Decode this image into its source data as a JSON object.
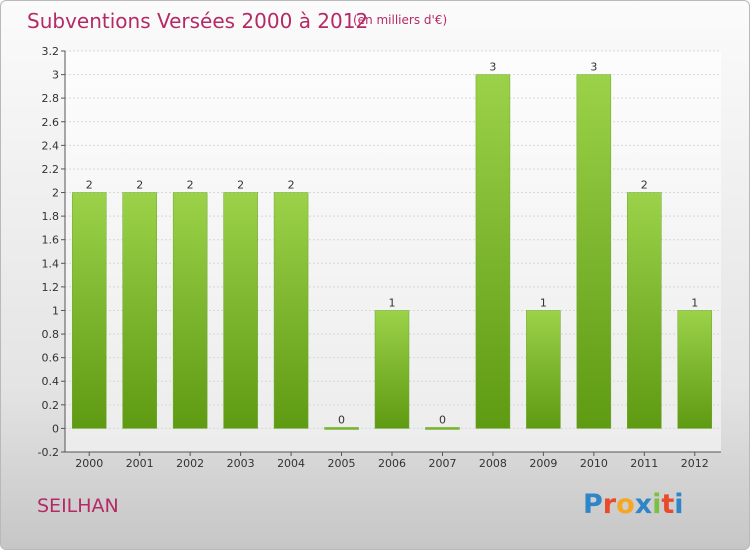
{
  "title": "Subventions Versées 2000 à 2012",
  "unit": "(en milliers d'€)",
  "commune": "SEILHAN",
  "logo": {
    "letters": [
      "P",
      "r",
      "o",
      "x",
      "i",
      "t",
      "i"
    ],
    "colors": [
      "#2e86c9",
      "#e94b2a",
      "#f5a623",
      "#2e86c9",
      "#7bc043",
      "#e94b2a",
      "#2e86c9"
    ]
  },
  "chart_data": {
    "type": "bar",
    "categories": [
      "2000",
      "2001",
      "2002",
      "2003",
      "2004",
      "2005",
      "2006",
      "2007",
      "2008",
      "2009",
      "2010",
      "2011",
      "2012"
    ],
    "values": [
      2,
      2,
      2,
      2,
      2,
      0,
      1,
      0,
      3,
      1,
      3,
      2,
      1
    ],
    "data_labels": [
      "2",
      "2",
      "2",
      "2",
      "2",
      "0",
      "1",
      "0",
      "3",
      "1",
      "3",
      "2",
      "1"
    ],
    "yticks": [
      "-0.2",
      "0",
      "0.2",
      "0.4",
      "0.6",
      "0.8",
      "1",
      "1.2",
      "1.4",
      "1.6",
      "1.8",
      "2",
      "2.2",
      "2.4",
      "2.6",
      "2.8",
      "3",
      "3.2"
    ],
    "ytick_values": [
      -0.2,
      0,
      0.2,
      0.4,
      0.6,
      0.8,
      1,
      1.2,
      1.4,
      1.6,
      1.8,
      2,
      2.2,
      2.4,
      2.6,
      2.8,
      3,
      3.2
    ],
    "ylim": [
      -0.2,
      3.2
    ],
    "bar_color": "#7fbf35",
    "grid": true
  }
}
